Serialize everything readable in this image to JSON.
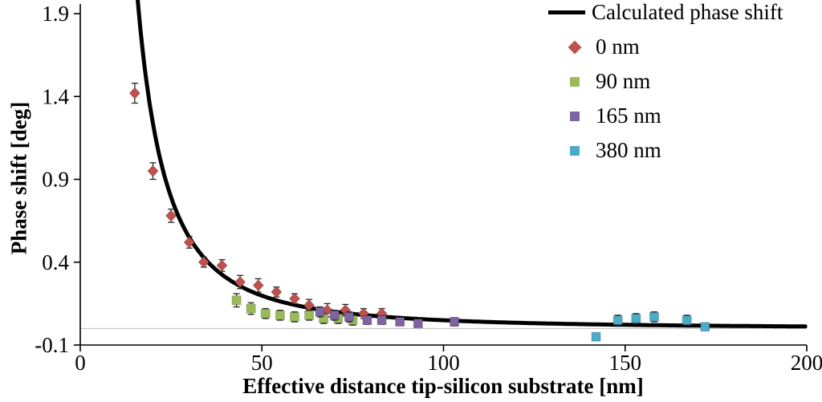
{
  "chart_data": {
    "type": "scatter",
    "title": "",
    "xlabel": "Effective distance tip-silicon substrate [nm]",
    "ylabel": "Phase shift [deg]",
    "xlim": [
      0,
      200
    ],
    "ylim": [
      -0.1,
      1.9
    ],
    "xticks": [
      0,
      50,
      100,
      150,
      200
    ],
    "yticks": [
      -0.1,
      0.4,
      0.9,
      1.4,
      1.9
    ],
    "grid": "single light horizontal line at y=0",
    "legend_position": "top-right",
    "error_bar_color": "#262626",
    "line_series": {
      "name": "Calculated phase shift",
      "color": "#000000",
      "model": {
        "k": 495,
        "n": 2,
        "x_start": 15.6,
        "x_end": 200
      }
    },
    "series": [
      {
        "name": "0 nm",
        "marker": "diamond",
        "color": "#C0504D",
        "points": [
          [
            15,
            1.42,
            0.06
          ],
          [
            20,
            0.95,
            0.05
          ],
          [
            25,
            0.68,
            0.04
          ],
          [
            30,
            0.52,
            0.035
          ],
          [
            34,
            0.4,
            0.03
          ],
          [
            39,
            0.38,
            0.035
          ],
          [
            44,
            0.28,
            0.04
          ],
          [
            49,
            0.26,
            0.04
          ],
          [
            54,
            0.22,
            0.03
          ],
          [
            59,
            0.18,
            0.03
          ],
          [
            63,
            0.14,
            0.035
          ],
          [
            68,
            0.11,
            0.04
          ],
          [
            73,
            0.11,
            0.035
          ],
          [
            78,
            0.09,
            0.03
          ],
          [
            83,
            0.09,
            0.03
          ]
        ]
      },
      {
        "name": "90 nm",
        "marker": "square",
        "color": "#9BBB59",
        "points": [
          [
            43,
            0.17,
            0.04
          ],
          [
            47,
            0.12,
            0.035
          ],
          [
            51,
            0.09,
            0.03
          ],
          [
            55,
            0.08,
            0.03
          ],
          [
            59,
            0.07,
            0.03
          ],
          [
            63,
            0.08,
            0.03
          ],
          [
            67,
            0.06,
            0.03
          ],
          [
            71,
            0.06,
            0.03
          ],
          [
            75,
            0.05,
            0.03
          ]
        ]
      },
      {
        "name": "165 nm",
        "marker": "square",
        "color": "#8064A2",
        "points": [
          [
            66,
            0.1,
            0.03
          ],
          [
            70,
            0.08,
            0.03
          ],
          [
            74,
            0.07,
            0.03
          ],
          [
            79,
            0.05,
            0.025
          ],
          [
            83,
            0.05,
            0.025
          ],
          [
            88,
            0.04,
            0.02
          ],
          [
            93,
            0.03,
            0.02
          ],
          [
            103,
            0.04,
            0.025
          ]
        ]
      },
      {
        "name": "380 nm",
        "marker": "square",
        "color": "#4BACC6",
        "points": [
          [
            142,
            -0.05,
            0.02
          ],
          [
            148,
            0.05,
            0.03
          ],
          [
            153,
            0.06,
            0.03
          ],
          [
            158,
            0.07,
            0.03
          ],
          [
            167,
            0.05,
            0.03
          ],
          [
            172,
            0.01,
            0.02
          ]
        ]
      }
    ]
  }
}
